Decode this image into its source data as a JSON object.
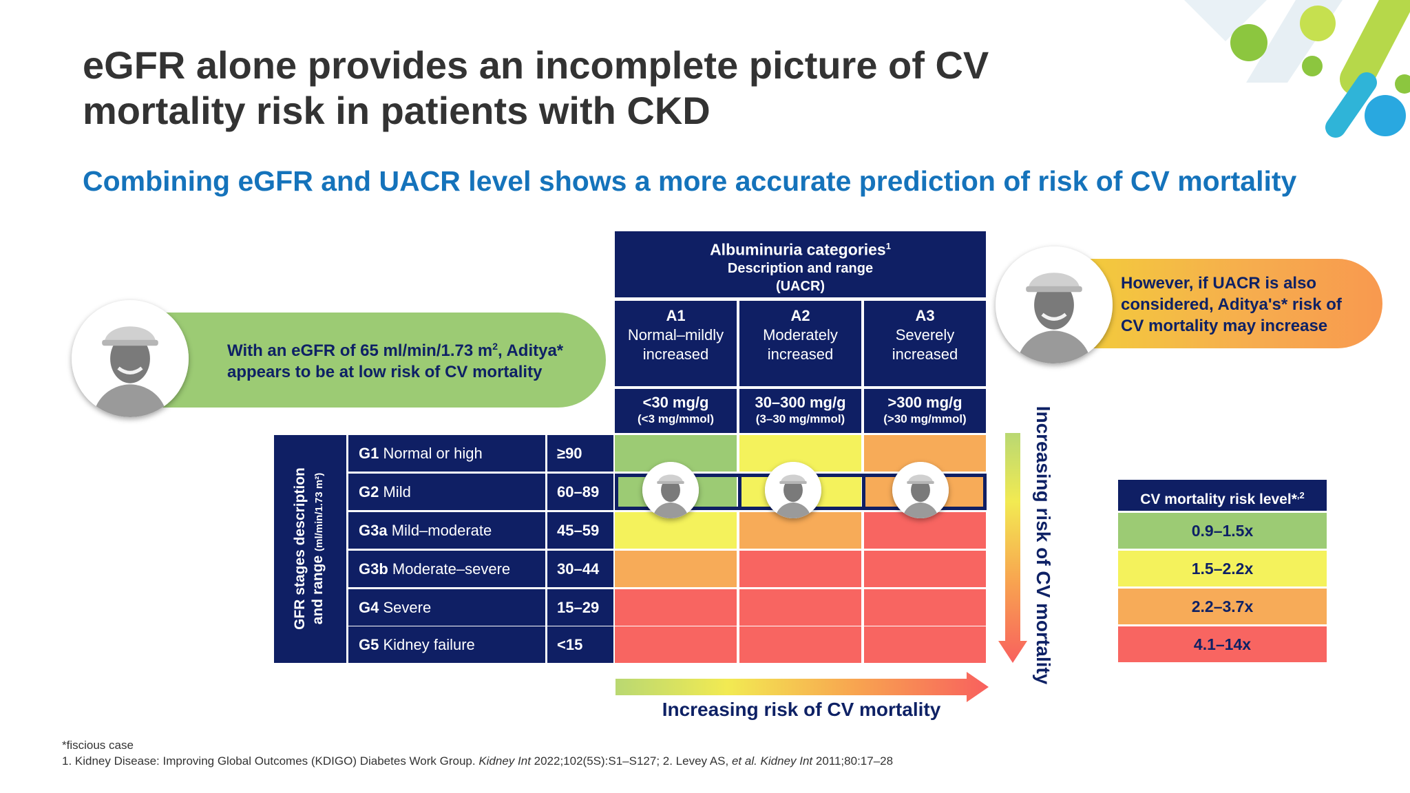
{
  "title": "eGFR alone provides an incomplete picture of CV mortality risk in patients with CKD",
  "subtitle": "Combining eGFR and UACR level shows a more accurate prediction of risk of CV mortality",
  "bubble_left": {
    "text_a": "With an eGFR of 65 ml/min/1.73 m",
    "sup": "2",
    "text_b": ", Aditya* appears to be at low risk of CV mortality"
  },
  "bubble_right": {
    "text": "However, if UACR is also considered, Aditya's* risk of CV mortality may increase"
  },
  "albuminuria": {
    "title": "Albuminuria categories",
    "title_sup": "1",
    "line2": "Description and range",
    "line3": "(UACR)",
    "categories": [
      {
        "code": "A1",
        "desc1": "Normal–mildly",
        "desc2": "increased",
        "range": "<30 mg/g",
        "range_sub": "(<3 mg/mmol)"
      },
      {
        "code": "A2",
        "desc1": "Moderately",
        "desc2": "increased",
        "range": "30–300 mg/g",
        "range_sub": "(3–30 mg/mmol)"
      },
      {
        "code": "A3",
        "desc1": "Severely",
        "desc2": "increased",
        "range": ">300 mg/g",
        "range_sub": "(>30 mg/mmol)"
      }
    ]
  },
  "gfr": {
    "side_label_1": "GFR stages description",
    "side_label_2": "and range",
    "side_label_unit": "(ml/min/1.73 m²)",
    "stages": [
      {
        "code": "G1",
        "desc": "Normal or high",
        "range": "≥90"
      },
      {
        "code": "G2",
        "desc": "Mild",
        "range": "60–89"
      },
      {
        "code": "G3a",
        "desc": "Mild–moderate",
        "range": "45–59"
      },
      {
        "code": "G3b",
        "desc": "Moderate–severe",
        "range": "30–44"
      },
      {
        "code": "G4",
        "desc": "Severe",
        "range": "15–29"
      },
      {
        "code": "G5",
        "desc": "Kidney failure",
        "range": "<15"
      }
    ]
  },
  "risk_grid": [
    [
      "green",
      "yellow",
      "orange"
    ],
    [
      "green",
      "yellow",
      "orange"
    ],
    [
      "yellow",
      "orange",
      "red"
    ],
    [
      "orange",
      "red",
      "red"
    ],
    [
      "red",
      "red",
      "red"
    ],
    [
      "red",
      "red",
      "red"
    ]
  ],
  "highlight_row": "G2",
  "colors": {
    "green": "#9ccb74",
    "yellow": "#f4f25c",
    "orange": "#f7ab58",
    "red": "#f86561",
    "navy": "#0f1f64",
    "blue": "#1573bb"
  },
  "arrows": {
    "horizontal_label": "Increasing risk of CV mortality",
    "vertical_label": "Increasing risk of CV mortality"
  },
  "legend": {
    "title": "CV mortality risk level*",
    "title_sup": ",2",
    "levels": [
      {
        "label": "0.9–1.5x",
        "color": "green"
      },
      {
        "label": "1.5–2.2x",
        "color": "yellow"
      },
      {
        "label": "2.2–3.7x",
        "color": "orange"
      },
      {
        "label": "4.1–14x",
        "color": "red"
      }
    ]
  },
  "footnotes": {
    "line1": "*fiscious case",
    "ref1_a": "1. Kidney Disease: Improving Global Outcomes (KDIGO) Diabetes Work Group. ",
    "ref1_journal": "Kidney Int",
    "ref1_b": " 2022;102(5S):S1–S127; 2. Levey AS, ",
    "ref2_etal": "et al. Kidney Int",
    "ref2_b": " 2011;80:17–28"
  }
}
